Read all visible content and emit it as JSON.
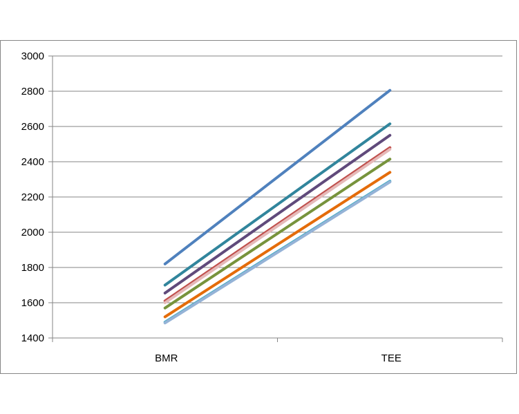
{
  "chart_data": {
    "type": "line",
    "title": "",
    "xlabel": "",
    "ylabel": "",
    "categories": [
      "BMR",
      "TEE"
    ],
    "ylim": [
      1400,
      3000
    ],
    "yticks": [
      1400,
      1600,
      1800,
      2000,
      2200,
      2400,
      2600,
      2800,
      3000
    ],
    "grid": true,
    "legend": "none",
    "series": [
      {
        "color": "#4F81BD",
        "values": [
          1820,
          2805
        ]
      },
      {
        "color": "#31859C",
        "values": [
          1700,
          2615
        ]
      },
      {
        "color": "#604A7B",
        "values": [
          1655,
          2550
        ]
      },
      {
        "color": "#C0504D",
        "values": [
          1610,
          2480
        ]
      },
      {
        "color": "#E6B9B8",
        "values": [
          1600,
          2470
        ]
      },
      {
        "color": "#77933C",
        "values": [
          1570,
          2415
        ]
      },
      {
        "color": "#E46C0A",
        "values": [
          1520,
          2340
        ]
      },
      {
        "color": "#4BACC6",
        "values": [
          1490,
          2290
        ]
      },
      {
        "color": "#95B3D7",
        "values": [
          1485,
          2285
        ]
      }
    ]
  }
}
